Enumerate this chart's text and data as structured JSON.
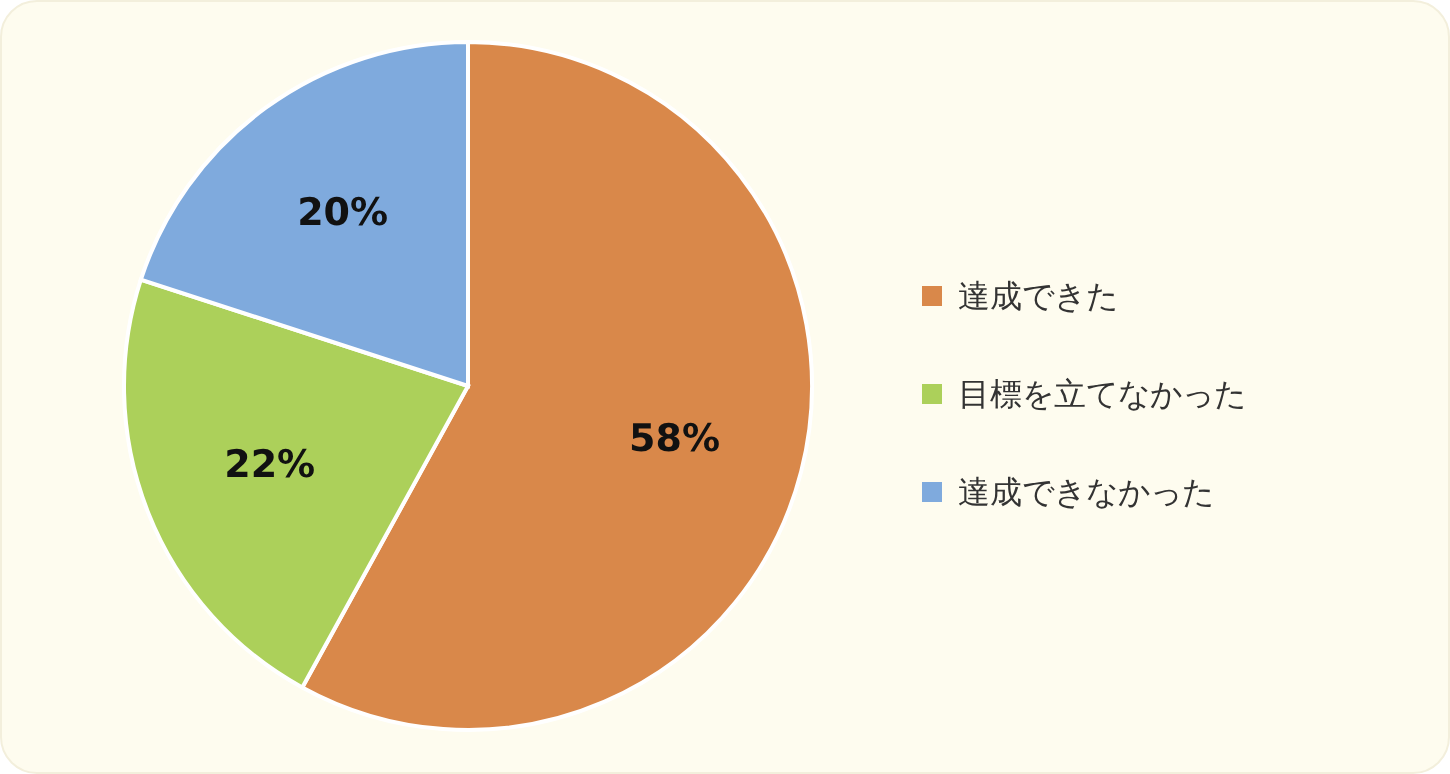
{
  "chart_data": {
    "type": "pie",
    "categories": [
      "達成できた",
      "目標を立てなかった",
      "達成できなかった"
    ],
    "values": [
      58,
      22,
      20
    ],
    "colors": [
      "#d9884a",
      "#acd05a",
      "#7faadd"
    ],
    "value_labels": [
      "58%",
      "22%",
      "20%"
    ],
    "legend": "right"
  }
}
